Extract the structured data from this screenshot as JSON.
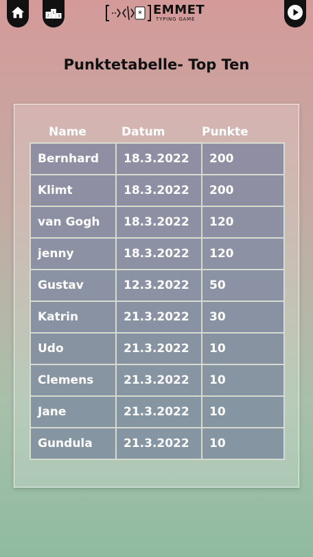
{
  "header": {
    "logo_title": "EMMET",
    "logo_subtitle": "TYPING GAME"
  },
  "icons": {
    "home": "home-icon",
    "ranking": "podium-icon",
    "play": "play-icon"
  },
  "page_title": "Punktetabelle- Top Ten",
  "table": {
    "headers": [
      "Name",
      "Datum",
      "Punkte"
    ],
    "rows": [
      {
        "name": "Bernhard",
        "date": "18.3.2022",
        "points": "200"
      },
      {
        "name": "Klimt",
        "date": "18.3.2022",
        "points": "200"
      },
      {
        "name": "van Gogh",
        "date": "18.3.2022",
        "points": "120"
      },
      {
        "name": "jenny",
        "date": "18.3.2022",
        "points": "120"
      },
      {
        "name": "Gustav",
        "date": "12.3.2022",
        "points": "50"
      },
      {
        "name": "Katrin",
        "date": "21.3.2022",
        "points": "30"
      },
      {
        "name": "Udo",
        "date": "21.3.2022",
        "points": "10"
      },
      {
        "name": "Clemens",
        "date": "21.3.2022",
        "points": "10"
      },
      {
        "name": "Jane",
        "date": "21.3.2022",
        "points": "10"
      },
      {
        "name": "Gundula",
        "date": "21.3.2022",
        "points": "10"
      }
    ]
  },
  "colors": {
    "row_top": "#8f8ea3",
    "row_bottom": "#8596a2",
    "cell_border": "#d8dcd0",
    "nav_button": "#111111"
  }
}
